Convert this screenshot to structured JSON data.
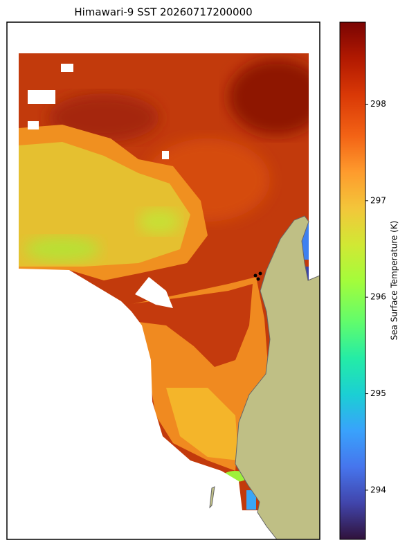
{
  "title": "Himawari-9 SST 20260717200000",
  "colorbar": {
    "label": "Sea Surface Temperature (K)",
    "colormap": "turbo",
    "lim": [
      293.49,
      298.85
    ],
    "ticks": [
      294,
      295,
      296,
      297,
      298
    ]
  }
}
